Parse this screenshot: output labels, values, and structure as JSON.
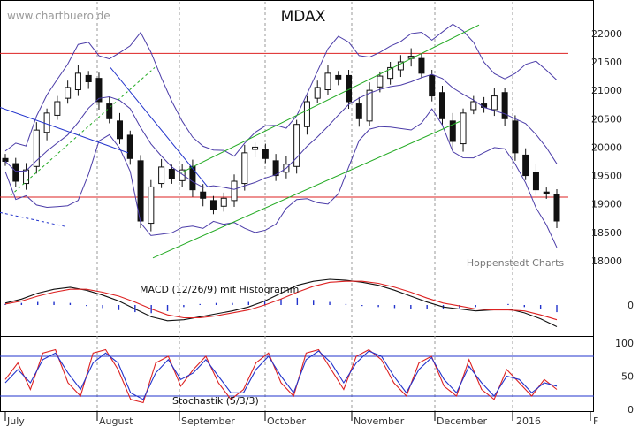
{
  "watermark": "www.chartbuero.de",
  "source_label": "Hoppenstedt Charts",
  "chart_data": [
    {
      "type": "candlestick",
      "title": "MDAX",
      "ylim": [
        18000,
        22200
      ],
      "yticks": [
        18000,
        18500,
        19000,
        19500,
        20000,
        20500,
        21000,
        21500,
        22000
      ],
      "xlabels": [
        "July",
        "August",
        "September",
        "October",
        "November",
        "December",
        "2016",
        "F"
      ],
      "horizontal_lines": [
        21650,
        19120
      ],
      "overlays": [
        "Bollinger Bands",
        "Trend channel"
      ],
      "close_approx": [
        19750,
        19400,
        19600,
        20300,
        20600,
        20800,
        21050,
        21300,
        21150,
        20800,
        20500,
        20150,
        19800,
        18700,
        19300,
        19650,
        19450,
        19600,
        19250,
        19100,
        18900,
        19100,
        19400,
        19900,
        20000,
        19800,
        19500,
        19700,
        20400,
        20800,
        21050,
        21300,
        21200,
        20800,
        20500,
        21000,
        21250,
        21400,
        21500,
        21600,
        21300,
        20900,
        20500,
        20100,
        20600,
        20800,
        20700,
        20900,
        20500,
        19900,
        19500,
        19250,
        19200,
        18700
      ]
    },
    {
      "type": "line",
      "title": "MACD (12/26/9) mit Histogramm",
      "yticks": [
        0
      ],
      "series": [
        {
          "name": "MACD",
          "values": [
            20,
            60,
            120,
            160,
            180,
            150,
            100,
            40,
            -40,
            -120,
            -160,
            -150,
            -120,
            -90,
            -60,
            -20,
            40,
            120,
            200,
            240,
            260,
            250,
            230,
            200,
            150,
            90,
            30,
            -20,
            -40,
            -60,
            -50,
            -40,
            -80,
            -140,
            -220
          ]
        },
        {
          "name": "Signal",
          "values": [
            10,
            40,
            90,
            130,
            160,
            160,
            130,
            90,
            30,
            -40,
            -100,
            -130,
            -130,
            -110,
            -80,
            -50,
            0,
            60,
            130,
            190,
            230,
            240,
            240,
            220,
            180,
            130,
            70,
            20,
            -10,
            -40,
            -50,
            -50,
            -60,
            -100,
            -150
          ]
        }
      ]
    },
    {
      "type": "line",
      "title": "Stochastik (5/3/3)",
      "yticks": [
        0,
        50,
        100
      ],
      "horizontal_lines": [
        20,
        80
      ],
      "series": [
        {
          "name": "%K",
          "values": [
            45,
            70,
            30,
            85,
            90,
            40,
            20,
            85,
            90,
            60,
            15,
            10,
            70,
            80,
            35,
            60,
            80,
            40,
            15,
            30,
            70,
            85,
            40,
            20,
            85,
            90,
            60,
            30,
            80,
            90,
            75,
            40,
            20,
            70,
            80,
            35,
            20,
            75,
            30,
            15,
            60,
            40,
            20,
            45,
            30
          ]
        },
        {
          "name": "%D",
          "values": [
            40,
            60,
            40,
            75,
            85,
            55,
            30,
            70,
            85,
            70,
            25,
            15,
            55,
            75,
            45,
            55,
            75,
            50,
            25,
            25,
            60,
            80,
            50,
            25,
            75,
            88,
            70,
            40,
            70,
            88,
            80,
            50,
            25,
            60,
            78,
            45,
            25,
            65,
            40,
            20,
            50,
            45,
            25,
            40,
            35
          ]
        }
      ]
    }
  ]
}
